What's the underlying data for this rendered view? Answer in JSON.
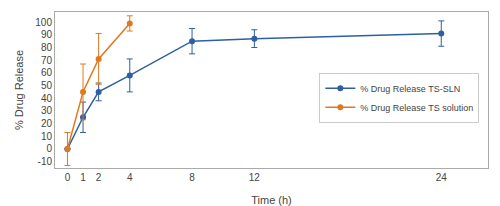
{
  "chart_data": {
    "type": "line",
    "xlabel": "Time (h)",
    "ylabel": "% Drug Release",
    "series": [
      {
        "name": "% Drug Release TS-SLN",
        "color": "#2e5fa3",
        "marker": "circle",
        "x": [
          0,
          1,
          2,
          4,
          8,
          12,
          24
        ],
        "values": [
          0,
          25,
          45,
          58,
          85,
          87,
          91
        ],
        "error": [
          0,
          12,
          7,
          13,
          10,
          7,
          10
        ]
      },
      {
        "name": "% Drug Release TS solution",
        "color": "#e07820",
        "marker": "circle",
        "x": [
          0,
          1,
          2,
          4
        ],
        "values": [
          0,
          45,
          71,
          99
        ],
        "error": [
          13,
          22,
          20,
          6
        ]
      }
    ],
    "xlim": [
      -0.8,
      27
    ],
    "ylim": [
      -15,
      108
    ],
    "xticks": [
      0,
      1,
      2,
      4,
      8,
      12,
      24
    ],
    "yticks": [
      -10,
      0,
      10,
      20,
      30,
      40,
      50,
      60,
      70,
      80,
      90,
      100
    ],
    "grid": false,
    "legend": "center right"
  }
}
